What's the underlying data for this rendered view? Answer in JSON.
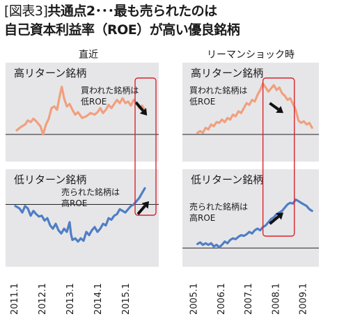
{
  "title": {
    "line1_tag": "[図表3]",
    "line1_text": "共通点2･･･最も売られたのは",
    "line2_text": "自己資本利益率（ROE）が高い優良銘柄"
  },
  "colors": {
    "high_line": "#f0a07e",
    "low_line": "#4f7ec4",
    "highlight_box": "#d9242c",
    "panel_bg": "#e6e6e9",
    "arrow": "#111111"
  },
  "chart_data": [
    {
      "id": "recent-high",
      "type": "line",
      "column_title": "直近",
      "panel_label": "高リターン銘柄",
      "annotation": "買われた銘柄は\n低ROE",
      "x_tick_labels": [
        "2011.1",
        "2012.1",
        "2013.1",
        "2014.1",
        "2015.1"
      ],
      "x_tick_positions": [
        0,
        1,
        2,
        3,
        4
      ],
      "xlim": [
        -0.3,
        5.2
      ],
      "ylim": [
        0,
        100
      ],
      "baseline": 28,
      "grid": false,
      "series": [
        {
          "values": [
            [
              0.1,
              33
            ],
            [
              0.25,
              37
            ],
            [
              0.4,
              40
            ],
            [
              0.5,
              45
            ],
            [
              0.6,
              43
            ],
            [
              0.7,
              47
            ],
            [
              0.8,
              44
            ],
            [
              0.95,
              38
            ],
            [
              1.05,
              28
            ],
            [
              1.15,
              40
            ],
            [
              1.25,
              47
            ],
            [
              1.35,
              60
            ],
            [
              1.45,
              62
            ],
            [
              1.55,
              58
            ],
            [
              1.65,
              76
            ],
            [
              1.72,
              86
            ],
            [
              1.8,
              72
            ],
            [
              1.9,
              62
            ],
            [
              2.0,
              65
            ],
            [
              2.1,
              58
            ],
            [
              2.2,
              52
            ],
            [
              2.3,
              55
            ],
            [
              2.45,
              48
            ],
            [
              2.6,
              50
            ],
            [
              2.75,
              54
            ],
            [
              2.9,
              52
            ],
            [
              3.0,
              55
            ],
            [
              3.1,
              60
            ],
            [
              3.2,
              54
            ],
            [
              3.3,
              58
            ],
            [
              3.4,
              64
            ],
            [
              3.5,
              60
            ],
            [
              3.6,
              65
            ],
            [
              3.7,
              70
            ],
            [
              3.8,
              66
            ],
            [
              3.9,
              72
            ],
            [
              4.0,
              66
            ],
            [
              4.1,
              68
            ],
            [
              4.2,
              63
            ],
            [
              4.3,
              70
            ],
            [
              4.4,
              66
            ],
            [
              4.5,
              60
            ],
            [
              4.6,
              63
            ],
            [
              4.7,
              58
            ]
          ]
        }
      ],
      "highlight": {
        "x_from": 4.35,
        "x_to": 5.1
      },
      "arrow": {
        "from": [
          4.38,
          67
        ],
        "to": [
          4.78,
          51
        ]
      }
    },
    {
      "id": "recent-low",
      "type": "line",
      "column_title": "直近",
      "panel_label": "低リターン銘柄",
      "annotation": "売られた銘柄は\n高ROE",
      "x_tick_labels": [
        "2011.1",
        "2012.1",
        "2013.1",
        "2014.1",
        "2015.1"
      ],
      "x_tick_positions": [
        0,
        1,
        2,
        3,
        4
      ],
      "xlim": [
        -0.3,
        5.2
      ],
      "ylim": [
        0,
        100
      ],
      "baseline": 72,
      "grid": false,
      "series": [
        {
          "values": [
            [
              0.05,
              70
            ],
            [
              0.2,
              67
            ],
            [
              0.3,
              62
            ],
            [
              0.4,
              70
            ],
            [
              0.5,
              67
            ],
            [
              0.6,
              58
            ],
            [
              0.7,
              64
            ],
            [
              0.8,
              60
            ],
            [
              0.9,
              57
            ],
            [
              1.0,
              58
            ],
            [
              1.1,
              52
            ],
            [
              1.2,
              55
            ],
            [
              1.3,
              46
            ],
            [
              1.4,
              42
            ],
            [
              1.5,
              48
            ],
            [
              1.6,
              40
            ],
            [
              1.7,
              36
            ],
            [
              1.8,
              42
            ],
            [
              1.9,
              38
            ],
            [
              2.0,
              50
            ],
            [
              2.05,
              35
            ],
            [
              2.1,
              28
            ],
            [
              2.2,
              30
            ],
            [
              2.3,
              26
            ],
            [
              2.4,
              30
            ],
            [
              2.5,
              27
            ],
            [
              2.6,
              38
            ],
            [
              2.7,
              34
            ],
            [
              2.8,
              40
            ],
            [
              2.9,
              44
            ],
            [
              3.0,
              38
            ],
            [
              3.1,
              42
            ],
            [
              3.2,
              48
            ],
            [
              3.3,
              46
            ],
            [
              3.4,
              55
            ],
            [
              3.5,
              53
            ],
            [
              3.6,
              58
            ],
            [
              3.7,
              60
            ],
            [
              3.8,
              66
            ],
            [
              3.9,
              64
            ],
            [
              4.0,
              62
            ],
            [
              4.1,
              66
            ],
            [
              4.2,
              70
            ],
            [
              4.3,
              72
            ],
            [
              4.4,
              76
            ],
            [
              4.5,
              80
            ],
            [
              4.6,
              86
            ],
            [
              4.7,
              92
            ]
          ]
        }
      ],
      "highlight": {
        "x_from": 4.35,
        "x_to": 5.1
      },
      "arrow": {
        "from": [
          4.45,
          60
        ],
        "to": [
          4.85,
          76
        ]
      }
    },
    {
      "id": "crisis-high",
      "type": "line",
      "column_title": "リーマンショック時",
      "panel_label": "高リターン銘柄",
      "annotation": "買われた銘柄は\n低ROE",
      "x_tick_labels": [
        "2005.1",
        "2006.1",
        "2007.1",
        "2008.1",
        "2009.1"
      ],
      "x_tick_positions": [
        0,
        1,
        2,
        3,
        4
      ],
      "xlim": [
        -0.4,
        4.6
      ],
      "ylim": [
        0,
        100
      ],
      "baseline": 28,
      "grid": false,
      "series": [
        {
          "values": [
            [
              0.15,
              30
            ],
            [
              0.25,
              32
            ],
            [
              0.35,
              30
            ],
            [
              0.45,
              36
            ],
            [
              0.55,
              34
            ],
            [
              0.65,
              40
            ],
            [
              0.75,
              38
            ],
            [
              0.85,
              43
            ],
            [
              0.95,
              42
            ],
            [
              1.05,
              46
            ],
            [
              1.15,
              43
            ],
            [
              1.25,
              48
            ],
            [
              1.35,
              46
            ],
            [
              1.45,
              52
            ],
            [
              1.55,
              50
            ],
            [
              1.65,
              56
            ],
            [
              1.75,
              54
            ],
            [
              1.85,
              60
            ],
            [
              1.95,
              66
            ],
            [
              2.05,
              64
            ],
            [
              2.15,
              70
            ],
            [
              2.25,
              68
            ],
            [
              2.35,
              76
            ],
            [
              2.45,
              82
            ],
            [
              2.55,
              90
            ],
            [
              2.65,
              85
            ],
            [
              2.75,
              80
            ],
            [
              2.85,
              84
            ],
            [
              2.95,
              88
            ],
            [
              3.05,
              82
            ],
            [
              3.15,
              85
            ],
            [
              3.25,
              78
            ],
            [
              3.35,
              75
            ],
            [
              3.45,
              70
            ],
            [
              3.55,
              72
            ],
            [
              3.65,
              65
            ],
            [
              3.75,
              58
            ],
            [
              3.85,
              45
            ],
            [
              3.95,
              42
            ],
            [
              4.05,
              44
            ],
            [
              4.15,
              40
            ],
            [
              4.25,
              42
            ],
            [
              4.35,
              36
            ]
          ]
        }
      ],
      "highlight": {
        "x_from": 2.55,
        "x_to": 3.7
      },
      "arrow": {
        "from": [
          2.8,
          66
        ],
        "to": [
          3.3,
          54
        ]
      }
    },
    {
      "id": "crisis-low",
      "type": "line",
      "column_title": "リーマンショック時",
      "panel_label": "低リターン銘柄",
      "annotation": "売られた銘柄は\n高ROE",
      "x_tick_labels": [
        "2005.1",
        "2006.1",
        "2007.1",
        "2008.1",
        "2009.1"
      ],
      "x_tick_positions": [
        0,
        1,
        2,
        3,
        4
      ],
      "xlim": [
        -0.4,
        4.6
      ],
      "ylim": [
        0,
        100
      ],
      "baseline": 18,
      "grid": false,
      "series": [
        {
          "values": [
            [
              0.15,
              23
            ],
            [
              0.25,
              25
            ],
            [
              0.35,
              22
            ],
            [
              0.45,
              24
            ],
            [
              0.55,
              22
            ],
            [
              0.65,
              24
            ],
            [
              0.75,
              20
            ],
            [
              0.85,
              22
            ],
            [
              0.95,
              19
            ],
            [
              1.05,
              22
            ],
            [
              1.15,
              26
            ],
            [
              1.25,
              24
            ],
            [
              1.35,
              28
            ],
            [
              1.45,
              30
            ],
            [
              1.55,
              29
            ],
            [
              1.65,
              32
            ],
            [
              1.75,
              34
            ],
            [
              1.85,
              33
            ],
            [
              1.95,
              35
            ],
            [
              2.05,
              38
            ],
            [
              2.15,
              36
            ],
            [
              2.25,
              40
            ],
            [
              2.35,
              42
            ],
            [
              2.45,
              40
            ],
            [
              2.55,
              44
            ],
            [
              2.65,
              46
            ],
            [
              2.75,
              50
            ],
            [
              2.85,
              54
            ],
            [
              2.95,
              56
            ],
            [
              3.05,
              60
            ],
            [
              3.15,
              62
            ],
            [
              3.25,
              64
            ],
            [
              3.35,
              68
            ],
            [
              3.45,
              72
            ],
            [
              3.55,
              74
            ],
            [
              3.65,
              73
            ],
            [
              3.75,
              78
            ],
            [
              3.85,
              76
            ],
            [
              3.95,
              74
            ],
            [
              4.05,
              72
            ],
            [
              4.15,
              70
            ],
            [
              4.25,
              66
            ],
            [
              4.35,
              64
            ]
          ]
        }
      ],
      "highlight": {
        "x_from": 2.55,
        "x_to": 3.7
      },
      "arrow": {
        "from": [
          2.8,
          48
        ],
        "to": [
          3.3,
          62
        ]
      }
    }
  ]
}
